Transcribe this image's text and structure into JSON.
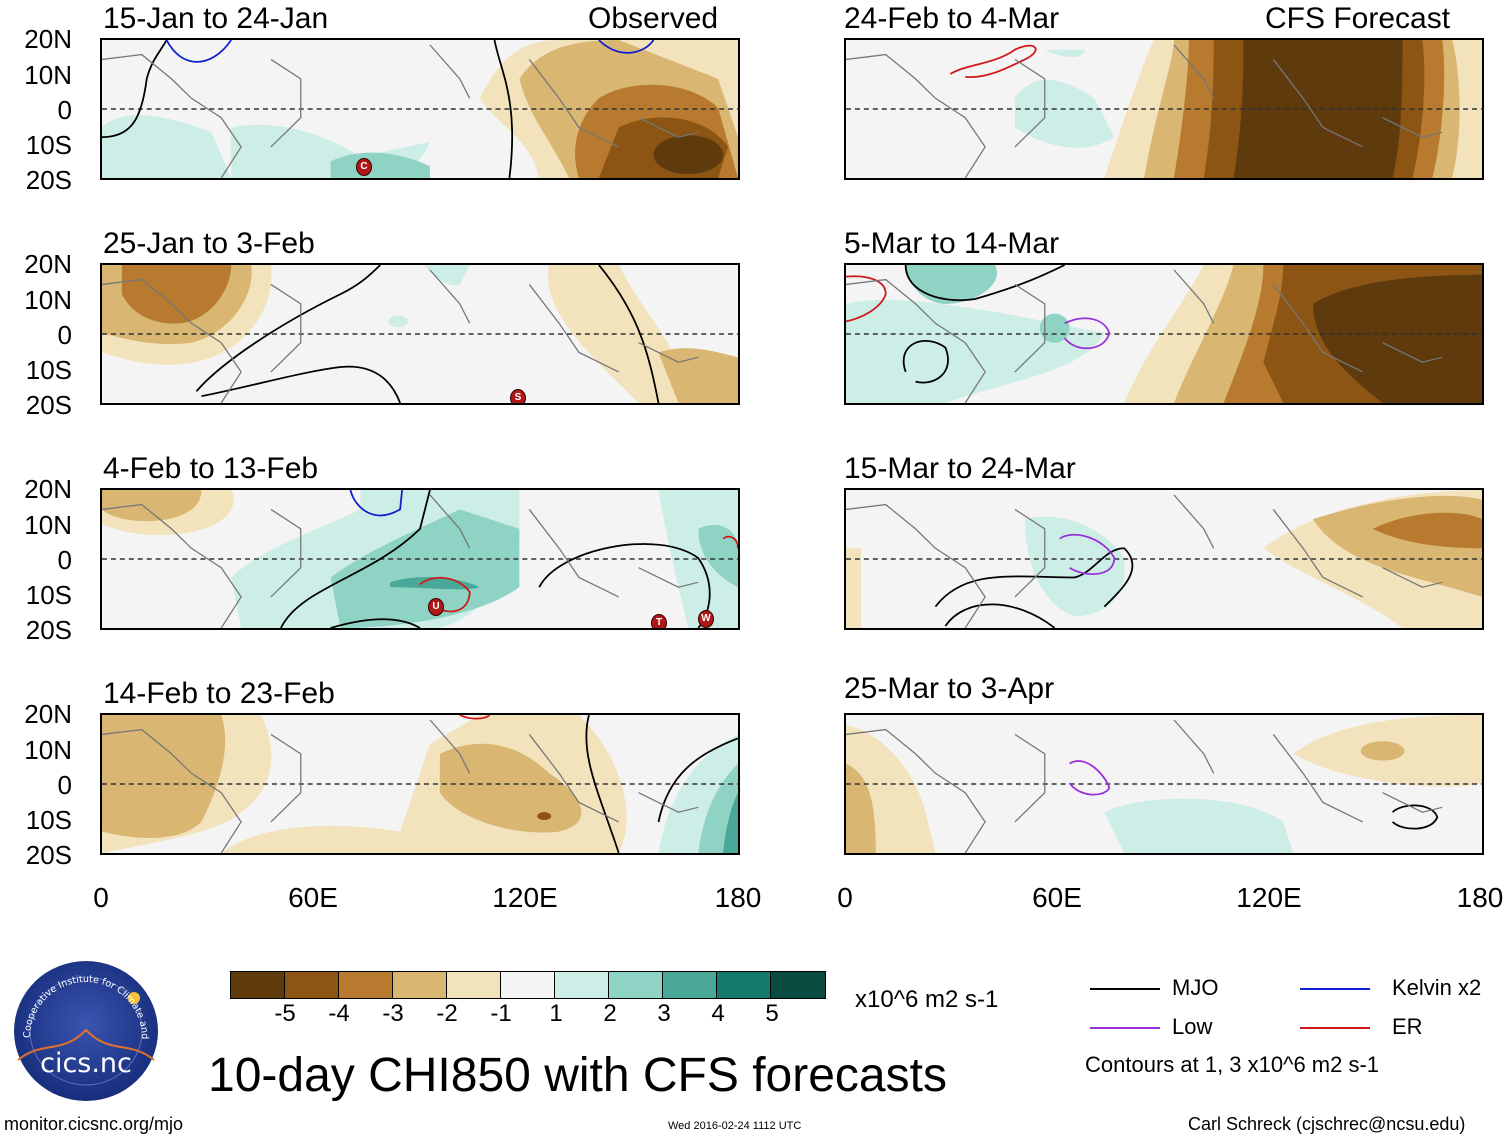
{
  "title": "10-day CHI850 with CFS forecasts",
  "observed_label": "Observed",
  "forecast_label": "CFS Forecast",
  "panels_left": [
    "15-Jan to 24-Jan",
    "25-Jan to 3-Feb",
    "4-Feb to 13-Feb",
    "14-Feb to 23-Feb"
  ],
  "panels_right": [
    "24-Feb to 4-Mar",
    "5-Mar to 14-Mar",
    "15-Mar to 24-Mar",
    "25-Mar to 3-Apr"
  ],
  "lat_labels": [
    "20N",
    "10N",
    "0",
    "10S",
    "20S"
  ],
  "lon_labels": [
    "0",
    "60E",
    "120E",
    "180"
  ],
  "colorbar": {
    "ticks": [
      "-5",
      "-4",
      "-3",
      "-2",
      "-1",
      "1",
      "2",
      "3",
      "4",
      "5"
    ],
    "units": "x10^6 m2 s-1",
    "colors": [
      "#5e3a0c",
      "#8c5514",
      "#b77a2e",
      "#d9b672",
      "#f2e3bd",
      "#f4f4f4",
      "#cdeee6",
      "#8fd3c4",
      "#4aa898",
      "#147a6c",
      "#0a4b40"
    ]
  },
  "legend": {
    "mjo": "MJO",
    "kelvin": "Kelvin x2",
    "low": "Low",
    "er": "ER",
    "contours_note": "Contours at 1, 3 x10^6 m2 s-1",
    "colors": {
      "mjo": "#000000",
      "kelvin": "#1020d0",
      "low": "#9a30d8",
      "er": "#d01818"
    }
  },
  "storm_markers": {
    "panel1": [
      "C"
    ],
    "panel2": [
      "S"
    ],
    "panel3": [
      "U",
      "T",
      "W"
    ]
  },
  "logo_text": "cics.nc",
  "logo_ring_text": "Cooperative Institute for Climate and Satellites",
  "footer": {
    "url": "monitor.cicsnc.org/mjo",
    "timestamp": "Wed 2016-02-24 1112 UTC",
    "credit": "Carl Schreck (cjschrec@ncsu.edu)"
  }
}
